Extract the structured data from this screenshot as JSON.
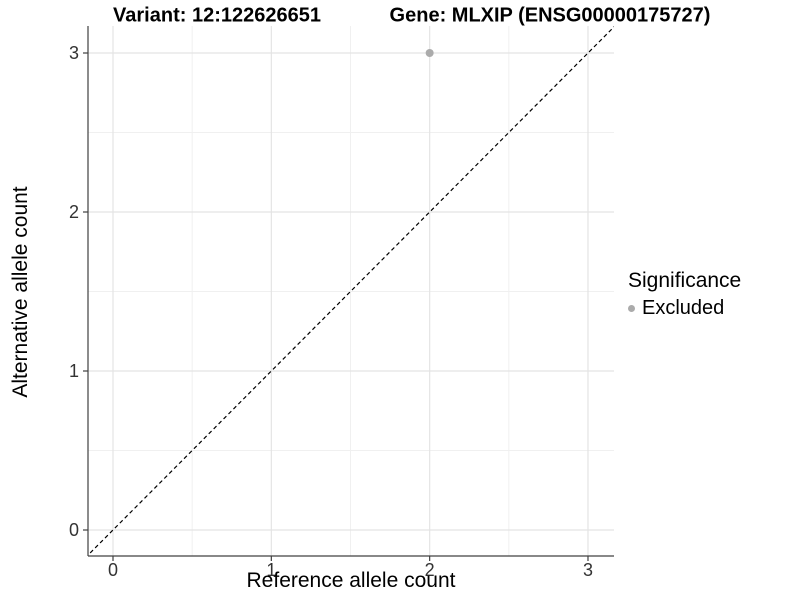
{
  "titles": {
    "variant": "Variant: 12:122626651",
    "gene": "Gene: MLXIP (ENSG00000175727)"
  },
  "axes": {
    "x": {
      "label": "Reference allele count",
      "tick_labels": [
        "0",
        "1",
        "2",
        "3"
      ]
    },
    "y": {
      "label": "Alternative allele count",
      "tick_labels": [
        "0",
        "1",
        "2",
        "3"
      ]
    }
  },
  "legend": {
    "title": "Significance",
    "items": [
      {
        "label": "Excluded",
        "color": "#ababab"
      }
    ]
  },
  "chart_data": {
    "type": "scatter",
    "title": "Variant: 12:122626651 — Gene: MLXIP (ENSG00000175727)",
    "xlabel": "Reference allele count",
    "ylabel": "Alternative allele count",
    "xlim": [
      -0.16,
      3.16
    ],
    "ylim": [
      -0.16,
      3.16
    ],
    "x_ticks": [
      0,
      1,
      2,
      3
    ],
    "y_ticks": [
      0,
      1,
      2,
      3
    ],
    "grid": true,
    "grid_minor": true,
    "legend_position": "right",
    "series": [
      {
        "name": "Excluded",
        "color": "#ababab",
        "points": [
          {
            "x": 2,
            "y": 3
          }
        ]
      }
    ],
    "reference_line": {
      "slope": 1,
      "intercept": 0,
      "style": "dashed",
      "equation": "y = x",
      "color": "#000000"
    }
  },
  "colors": {
    "background": "#ffffff",
    "grid_major": "#e4e4e4",
    "grid_minor": "#f0f0f0",
    "axis_line": "#404040",
    "tick_label": "#333333",
    "point": "#ababab"
  }
}
